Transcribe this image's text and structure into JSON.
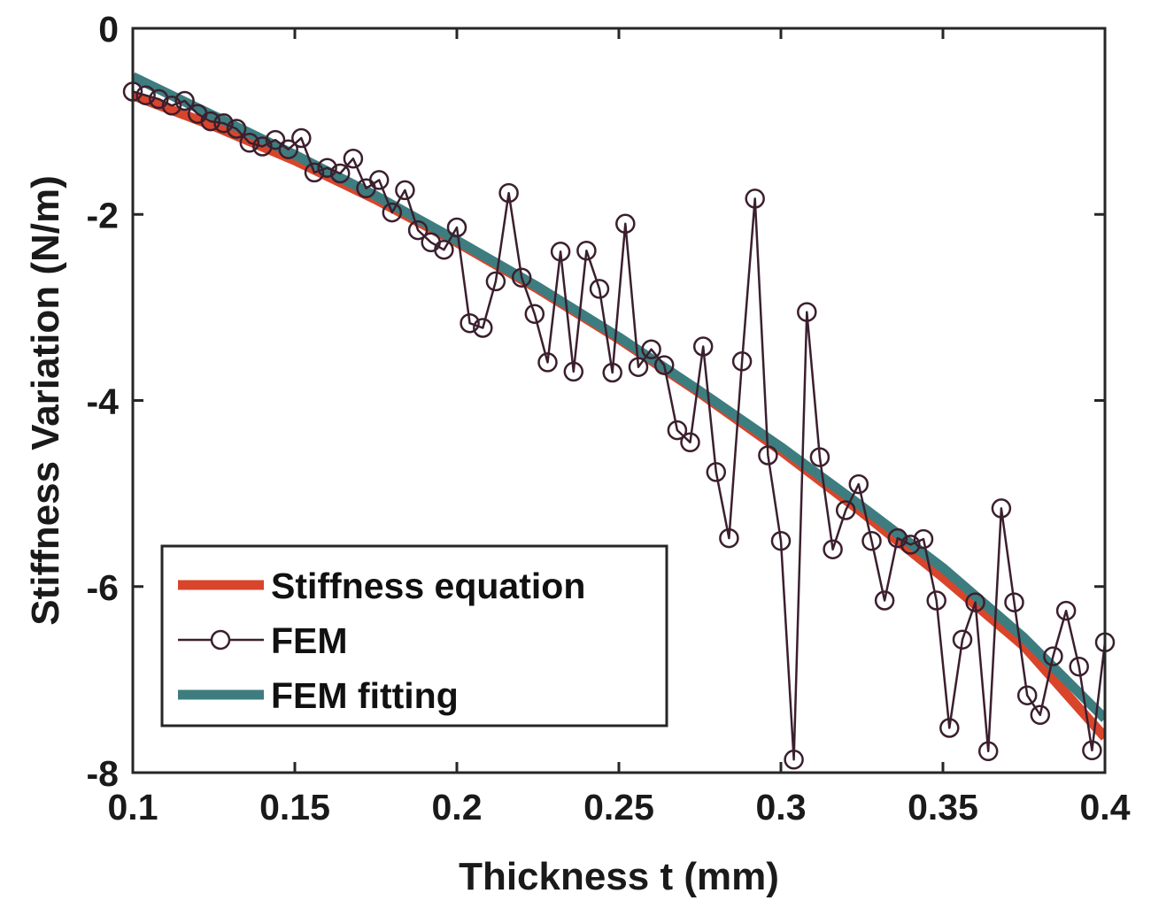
{
  "chart_data": {
    "type": "line",
    "xlabel": "Thickness t (mm)",
    "ylabel": "Stiffness Variation (N/m)",
    "xlim": [
      0.1,
      0.4
    ],
    "ylim": [
      -8,
      0
    ],
    "xticks": [
      0.1,
      0.15,
      0.2,
      0.25,
      0.3,
      0.35,
      0.4
    ],
    "xtick_labels": [
      "0.1",
      "0.15",
      "0.2",
      "0.25",
      "0.3",
      "0.35",
      "0.4"
    ],
    "yticks": [
      0,
      -2,
      -4,
      -6,
      -8
    ],
    "ytick_labels": [
      "0",
      "-2",
      "-4",
      "-6",
      "-8"
    ],
    "grid": false,
    "legend_position": "bottom-left",
    "series": [
      {
        "name": "Stiffness equation",
        "style": "line",
        "color": "#d8452b",
        "x": [
          0.1,
          0.125,
          0.15,
          0.175,
          0.2,
          0.225,
          0.25,
          0.275,
          0.3,
          0.325,
          0.35,
          0.375,
          0.4
        ],
        "y": [
          -0.72,
          -1.05,
          -1.42,
          -1.84,
          -2.3,
          -2.8,
          -3.34,
          -3.92,
          -4.54,
          -5.2,
          -5.9,
          -6.64,
          -7.62
        ]
      },
      {
        "name": "FEM",
        "style": "line-circle-marker",
        "color": "#3b1f2e",
        "x": [
          0.1,
          0.104,
          0.108,
          0.112,
          0.116,
          0.12,
          0.124,
          0.128,
          0.132,
          0.136,
          0.14,
          0.144,
          0.148,
          0.152,
          0.156,
          0.16,
          0.164,
          0.168,
          0.172,
          0.176,
          0.18,
          0.184,
          0.188,
          0.192,
          0.196,
          0.2,
          0.204,
          0.208,
          0.212,
          0.216,
          0.22,
          0.224,
          0.228,
          0.232,
          0.236,
          0.24,
          0.244,
          0.248,
          0.252,
          0.256,
          0.26,
          0.264,
          0.268,
          0.272,
          0.276,
          0.28,
          0.284,
          0.288,
          0.292,
          0.296,
          0.3,
          0.304,
          0.308,
          0.312,
          0.316,
          0.32,
          0.324,
          0.328,
          0.332,
          0.336,
          0.34,
          0.344,
          0.348,
          0.352,
          0.356,
          0.36,
          0.364,
          0.368,
          0.372,
          0.376,
          0.38,
          0.384,
          0.388,
          0.392,
          0.396,
          0.4
        ],
        "y": [
          -0.68,
          -0.72,
          -0.76,
          -0.83,
          -0.78,
          -0.92,
          -1.0,
          -1.02,
          -1.08,
          -1.23,
          -1.27,
          -1.2,
          -1.3,
          -1.18,
          -1.55,
          -1.5,
          -1.56,
          -1.4,
          -1.72,
          -1.63,
          -1.98,
          -1.74,
          -2.17,
          -2.3,
          -2.38,
          -2.14,
          -3.17,
          -3.22,
          -2.72,
          -1.77,
          -2.68,
          -3.07,
          -3.59,
          -2.4,
          -3.69,
          -2.39,
          -2.8,
          -3.7,
          -2.1,
          -3.64,
          -3.45,
          -3.62,
          -4.32,
          -4.45,
          -3.42,
          -4.77,
          -5.48,
          -3.58,
          -1.83,
          -4.59,
          -5.51,
          -7.86,
          -3.05,
          -4.61,
          -5.6,
          -5.18,
          -4.9,
          -5.51,
          -6.15,
          -5.48,
          -5.55,
          -5.49,
          -6.15,
          -7.52,
          -6.57,
          -6.17,
          -7.77,
          -5.16,
          -6.17,
          -7.17,
          -7.38,
          -6.75,
          -6.26,
          -6.86,
          -7.76,
          -6.6
        ]
      },
      {
        "name": "FEM fitting",
        "style": "line",
        "color": "#3d7d7f",
        "x": [
          0.1,
          0.125,
          0.15,
          0.175,
          0.2,
          0.225,
          0.25,
          0.275,
          0.3,
          0.325,
          0.35,
          0.375,
          0.4
        ],
        "y": [
          -0.52,
          -0.94,
          -1.36,
          -1.8,
          -2.28,
          -2.78,
          -3.32,
          -3.9,
          -4.5,
          -5.14,
          -5.8,
          -6.55,
          -7.42
        ]
      }
    ]
  }
}
